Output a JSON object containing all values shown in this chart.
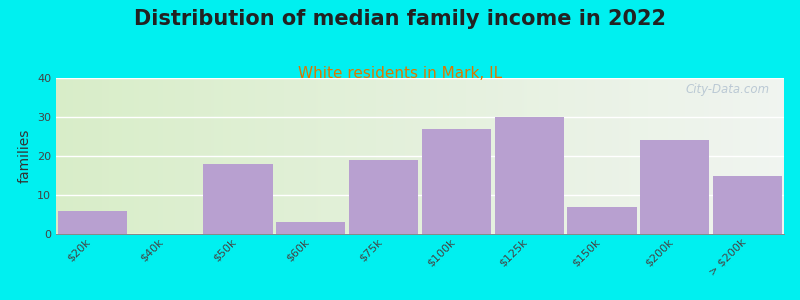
{
  "title": "Distribution of median family income in 2022",
  "subtitle": "White residents in Mark, IL",
  "ylabel": "families",
  "categories": [
    "$20k",
    "$40k",
    "$50k",
    "$60k",
    "$75k",
    "$100k",
    "$125k",
    "$150k",
    "$200k",
    "> $200k"
  ],
  "values": [
    6,
    0,
    18,
    3,
    19,
    27,
    30,
    7,
    24,
    15
  ],
  "bar_color": "#b8a0d0",
  "background_color": "#00f0f0",
  "plot_bg_gradient_left": "#d8edc8",
  "plot_bg_gradient_right": "#f0f4f0",
  "title_fontsize": 15,
  "subtitle_fontsize": 11,
  "subtitle_color": "#dd7700",
  "ylabel_fontsize": 10,
  "ylim": [
    0,
    40
  ],
  "yticks": [
    0,
    10,
    20,
    30,
    40
  ],
  "watermark": "City-Data.com"
}
